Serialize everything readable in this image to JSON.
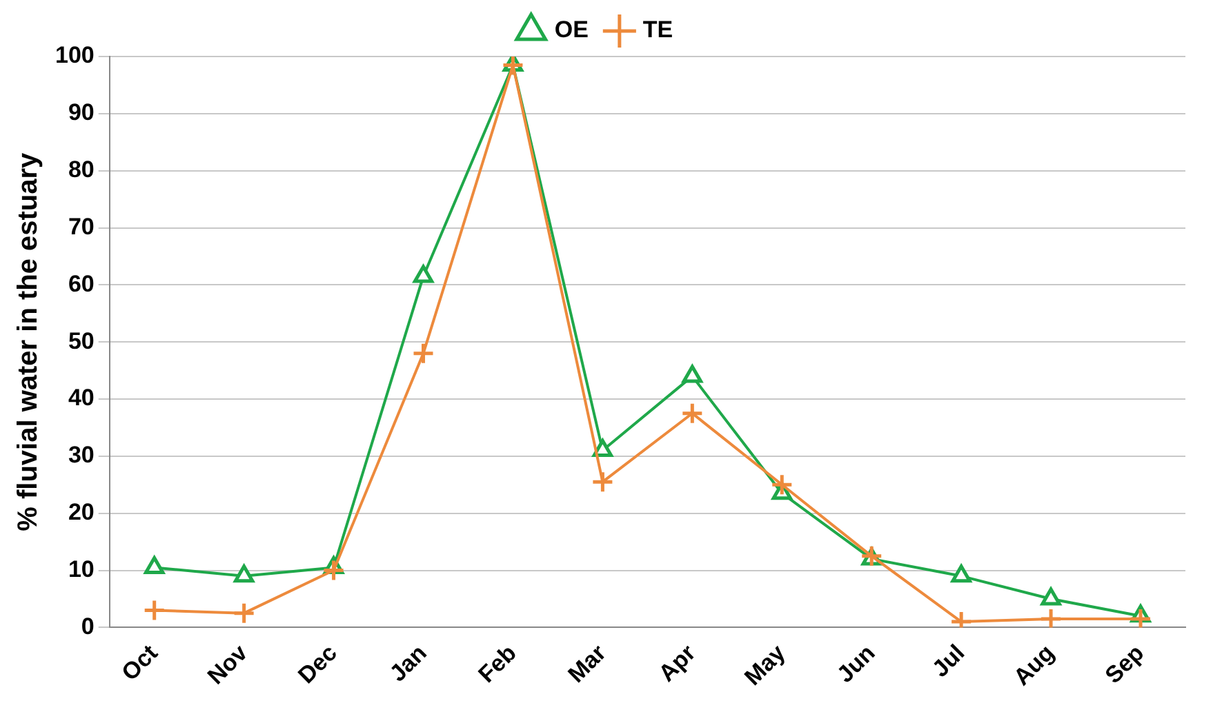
{
  "chart_data": {
    "type": "line",
    "ylabel": "% fluvial water in the estuary",
    "categories": [
      "Oct",
      "Nov",
      "Dec",
      "Jan",
      "Feb",
      "Mar",
      "Apr",
      "May",
      "Jun",
      "Jul",
      "Aug",
      "Sep"
    ],
    "series": [
      {
        "name": "OE",
        "color": "#1fa84a",
        "marker": "triangle",
        "values": [
          10.5,
          9,
          10.5,
          61.5,
          98.5,
          31,
          44,
          23.5,
          12,
          9,
          5,
          2
        ]
      },
      {
        "name": "TE",
        "color": "#ed8a3c",
        "marker": "cross",
        "values": [
          3,
          2.5,
          10,
          48,
          98.5,
          25.5,
          37.5,
          25,
          12.5,
          1,
          1.5,
          1.5
        ]
      }
    ],
    "ylim": [
      0,
      100
    ],
    "yticks": [
      0,
      10,
      20,
      30,
      40,
      50,
      60,
      70,
      80,
      90,
      100
    ],
    "grid": "y",
    "legend": "top"
  }
}
